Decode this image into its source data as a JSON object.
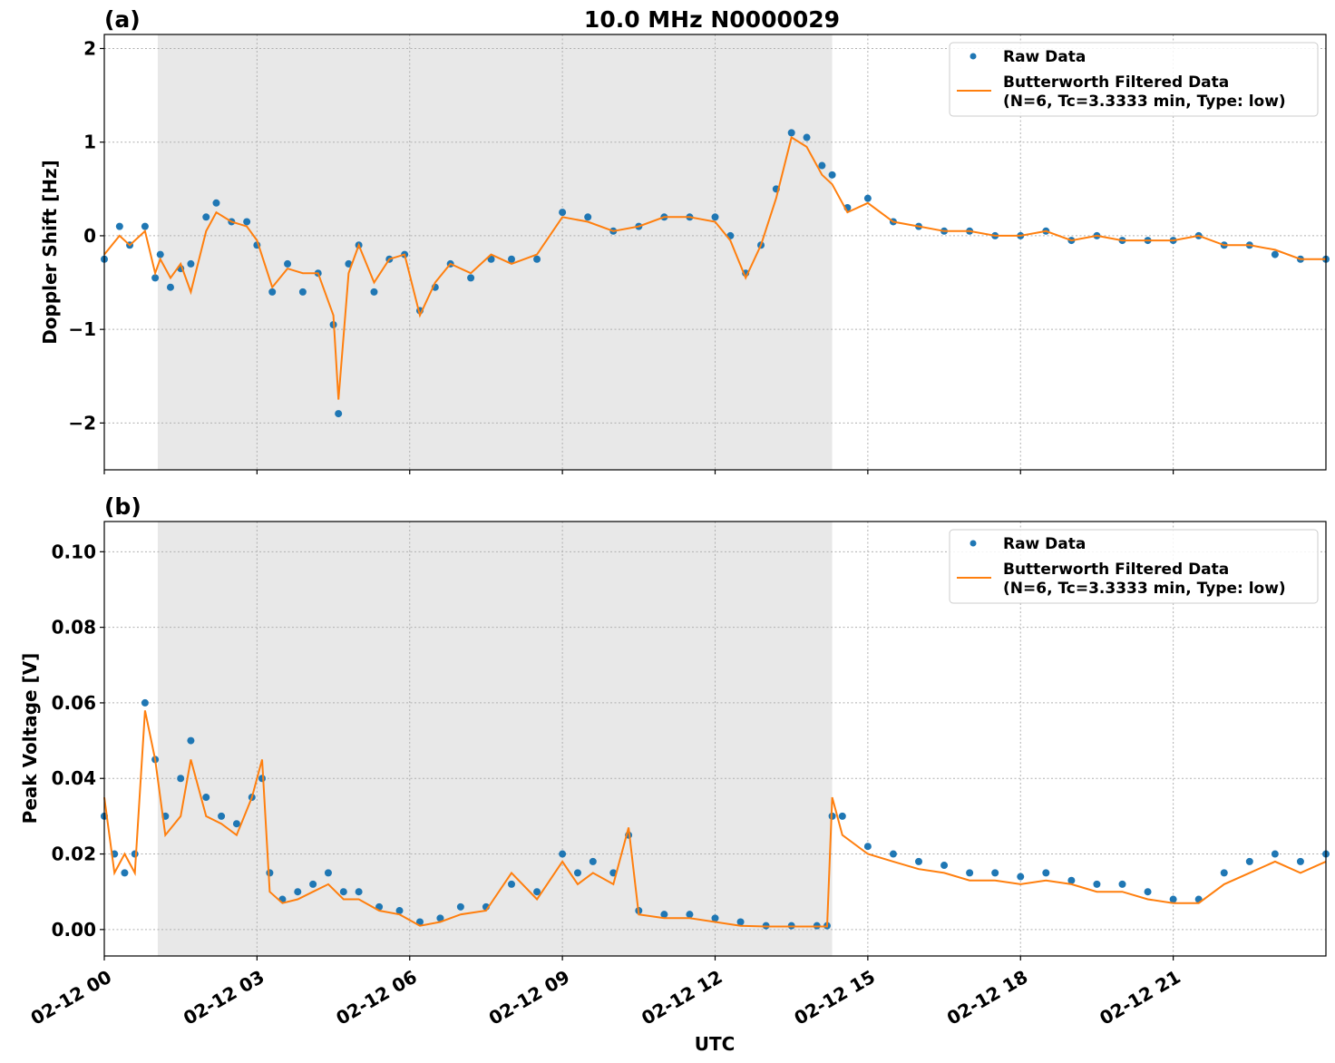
{
  "figure": {
    "title": "10.0 MHz N0000029",
    "xlabel": "UTC",
    "x_tick_labels": [
      "02-12 00",
      "02-12 03",
      "02-12 06",
      "02-12 09",
      "02-12 12",
      "02-12 15",
      "02-12 18",
      "02-12 21"
    ],
    "colors": {
      "raw": "#1f77b4",
      "filtered": "#ff7f0e",
      "shade": "#e8e8e8"
    },
    "legend": {
      "raw": "Raw Data",
      "filtered_line1": "Butterworth Filtered Data",
      "filtered_line2": "(N=6, Tc=3.3333 min, Type: low)"
    }
  },
  "chart_data": [
    {
      "type": "scatter",
      "panel_label": "(a)",
      "title": "10.0 MHz N0000029",
      "xlabel": "",
      "ylabel": "Doppler Shift [Hz]",
      "x_unit": "hours UTC on 02-12",
      "xlim": [
        0,
        24
      ],
      "ylim": [
        -2.5,
        2.15
      ],
      "y_ticks": [
        2,
        1,
        0,
        -1,
        -2
      ],
      "y_tick_labels": [
        "2",
        "1",
        "0",
        "−1",
        "−2"
      ],
      "shaded_span": [
        1.05,
        14.3
      ],
      "grid": true,
      "legend_position": "upper right",
      "series": [
        {
          "name": "Raw Data",
          "kind": "scatter",
          "x": [
            0.0,
            0.3,
            0.5,
            0.8,
            1.0,
            1.1,
            1.3,
            1.5,
            1.7,
            2.0,
            2.2,
            2.5,
            2.8,
            3.0,
            3.3,
            3.6,
            3.9,
            4.2,
            4.5,
            4.6,
            4.8,
            5.0,
            5.3,
            5.6,
            5.9,
            6.2,
            6.5,
            6.8,
            7.2,
            7.6,
            8.0,
            8.5,
            9.0,
            9.5,
            10.0,
            10.5,
            11.0,
            11.5,
            12.0,
            12.3,
            12.6,
            12.9,
            13.2,
            13.5,
            13.8,
            14.1,
            14.3,
            14.6,
            15.0,
            15.5,
            16.0,
            16.5,
            17.0,
            17.5,
            18.0,
            18.5,
            19.0,
            19.5,
            20.0,
            20.5,
            21.0,
            21.5,
            22.0,
            22.5,
            23.0,
            23.5,
            24.0
          ],
          "y": [
            -0.25,
            0.1,
            -0.1,
            0.1,
            -0.45,
            -0.2,
            -0.55,
            -0.35,
            -0.3,
            0.2,
            0.35,
            0.15,
            0.15,
            -0.1,
            -0.6,
            -0.3,
            -0.6,
            -0.4,
            -0.95,
            -1.9,
            -0.3,
            -0.1,
            -0.6,
            -0.25,
            -0.2,
            -0.8,
            -0.55,
            -0.3,
            -0.45,
            -0.25,
            -0.25,
            -0.25,
            0.25,
            0.2,
            0.05,
            0.1,
            0.2,
            0.2,
            0.2,
            0.0,
            -0.4,
            -0.1,
            0.5,
            1.1,
            1.05,
            0.75,
            0.65,
            0.3,
            0.4,
            0.15,
            0.1,
            0.05,
            0.05,
            0.0,
            0.0,
            0.05,
            -0.05,
            0.0,
            -0.05,
            -0.05,
            -0.05,
            0.0,
            -0.1,
            -0.1,
            -0.2,
            -0.25,
            -0.25
          ]
        },
        {
          "name": "Butterworth Filtered Data (N=6, Tc=3.3333 min, Type: low)",
          "kind": "line",
          "x": [
            0.0,
            0.3,
            0.5,
            0.8,
            1.0,
            1.1,
            1.3,
            1.5,
            1.7,
            2.0,
            2.2,
            2.5,
            2.8,
            3.0,
            3.3,
            3.6,
            3.9,
            4.2,
            4.5,
            4.6,
            4.8,
            5.0,
            5.3,
            5.6,
            5.9,
            6.2,
            6.5,
            6.8,
            7.2,
            7.6,
            8.0,
            8.5,
            9.0,
            9.5,
            10.0,
            10.5,
            11.0,
            11.5,
            12.0,
            12.3,
            12.6,
            12.9,
            13.2,
            13.5,
            13.8,
            14.1,
            14.3,
            14.6,
            15.0,
            15.5,
            16.0,
            16.5,
            17.0,
            17.5,
            18.0,
            18.5,
            19.0,
            19.5,
            20.0,
            20.5,
            21.0,
            21.5,
            22.0,
            22.5,
            23.0,
            23.5,
            24.0
          ],
          "y": [
            -0.2,
            0.0,
            -0.1,
            0.05,
            -0.4,
            -0.25,
            -0.45,
            -0.3,
            -0.6,
            0.05,
            0.25,
            0.15,
            0.1,
            -0.05,
            -0.55,
            -0.35,
            -0.4,
            -0.4,
            -0.85,
            -1.75,
            -0.4,
            -0.1,
            -0.5,
            -0.25,
            -0.2,
            -0.85,
            -0.5,
            -0.3,
            -0.4,
            -0.2,
            -0.3,
            -0.2,
            0.2,
            0.15,
            0.05,
            0.1,
            0.2,
            0.2,
            0.15,
            -0.05,
            -0.45,
            -0.1,
            0.4,
            1.05,
            0.95,
            0.65,
            0.55,
            0.25,
            0.35,
            0.15,
            0.1,
            0.05,
            0.05,
            0.0,
            0.0,
            0.05,
            -0.05,
            0.0,
            -0.05,
            -0.05,
            -0.05,
            0.0,
            -0.1,
            -0.1,
            -0.15,
            -0.25,
            -0.25
          ]
        }
      ]
    },
    {
      "type": "scatter",
      "panel_label": "(b)",
      "xlabel": "UTC",
      "ylabel": "Peak Voltage [V]",
      "x_unit": "hours UTC on 02-12",
      "xlim": [
        0,
        24
      ],
      "ylim": [
        -0.007,
        0.108
      ],
      "y_ticks": [
        0.1,
        0.08,
        0.06,
        0.04,
        0.02,
        0.0
      ],
      "y_tick_labels": [
        "0.10",
        "0.08",
        "0.06",
        "0.04",
        "0.02",
        "0.00"
      ],
      "shaded_span": [
        1.05,
        14.3
      ],
      "grid": true,
      "legend_position": "upper right",
      "series": [
        {
          "name": "Raw Data",
          "kind": "scatter",
          "x": [
            0.0,
            0.2,
            0.4,
            0.6,
            0.8,
            1.0,
            1.2,
            1.5,
            1.7,
            2.0,
            2.3,
            2.6,
            2.9,
            3.1,
            3.25,
            3.5,
            3.8,
            4.1,
            4.4,
            4.7,
            5.0,
            5.4,
            5.8,
            6.2,
            6.6,
            7.0,
            7.5,
            8.0,
            8.5,
            9.0,
            9.3,
            9.6,
            10.0,
            10.3,
            10.5,
            11.0,
            11.5,
            12.0,
            12.5,
            13.0,
            13.5,
            14.0,
            14.2,
            14.3,
            14.5,
            15.0,
            15.5,
            16.0,
            16.5,
            17.0,
            17.5,
            18.0,
            18.5,
            19.0,
            19.5,
            20.0,
            20.5,
            21.0,
            21.5,
            22.0,
            22.5,
            23.0,
            23.5,
            24.0
          ],
          "y": [
            0.03,
            0.02,
            0.015,
            0.02,
            0.06,
            0.045,
            0.03,
            0.04,
            0.05,
            0.035,
            0.03,
            0.028,
            0.035,
            0.04,
            0.015,
            0.008,
            0.01,
            0.012,
            0.015,
            0.01,
            0.01,
            0.006,
            0.005,
            0.002,
            0.003,
            0.006,
            0.006,
            0.012,
            0.01,
            0.02,
            0.015,
            0.018,
            0.015,
            0.025,
            0.005,
            0.004,
            0.004,
            0.003,
            0.002,
            0.001,
            0.001,
            0.001,
            0.001,
            0.03,
            0.03,
            0.022,
            0.02,
            0.018,
            0.017,
            0.015,
            0.015,
            0.014,
            0.015,
            0.013,
            0.012,
            0.012,
            0.01,
            0.008,
            0.008,
            0.015,
            0.018,
            0.02,
            0.018,
            0.02
          ]
        },
        {
          "name": "Butterworth Filtered Data (N=6, Tc=3.3333 min, Type: low)",
          "kind": "line",
          "x": [
            0.0,
            0.2,
            0.4,
            0.6,
            0.8,
            1.0,
            1.2,
            1.5,
            1.7,
            2.0,
            2.3,
            2.6,
            2.9,
            3.1,
            3.25,
            3.5,
            3.8,
            4.1,
            4.4,
            4.7,
            5.0,
            5.4,
            5.8,
            6.2,
            6.6,
            7.0,
            7.5,
            8.0,
            8.5,
            9.0,
            9.3,
            9.6,
            10.0,
            10.3,
            10.5,
            11.0,
            11.5,
            12.0,
            12.5,
            13.0,
            13.5,
            14.0,
            14.2,
            14.3,
            14.5,
            15.0,
            15.5,
            16.0,
            16.5,
            17.0,
            17.5,
            18.0,
            18.5,
            19.0,
            19.5,
            20.0,
            20.5,
            21.0,
            21.5,
            22.0,
            22.5,
            23.0,
            23.5,
            24.0
          ],
          "y": [
            0.035,
            0.015,
            0.02,
            0.015,
            0.058,
            0.045,
            0.025,
            0.03,
            0.045,
            0.03,
            0.028,
            0.025,
            0.035,
            0.045,
            0.01,
            0.007,
            0.008,
            0.01,
            0.012,
            0.008,
            0.008,
            0.005,
            0.004,
            0.001,
            0.002,
            0.004,
            0.005,
            0.015,
            0.008,
            0.018,
            0.012,
            0.015,
            0.012,
            0.027,
            0.004,
            0.003,
            0.003,
            0.002,
            0.001,
            0.0008,
            0.0008,
            0.0008,
            0.0008,
            0.035,
            0.025,
            0.02,
            0.018,
            0.016,
            0.015,
            0.013,
            0.013,
            0.012,
            0.013,
            0.012,
            0.01,
            0.01,
            0.008,
            0.007,
            0.007,
            0.012,
            0.015,
            0.018,
            0.015,
            0.018
          ]
        }
      ]
    }
  ]
}
